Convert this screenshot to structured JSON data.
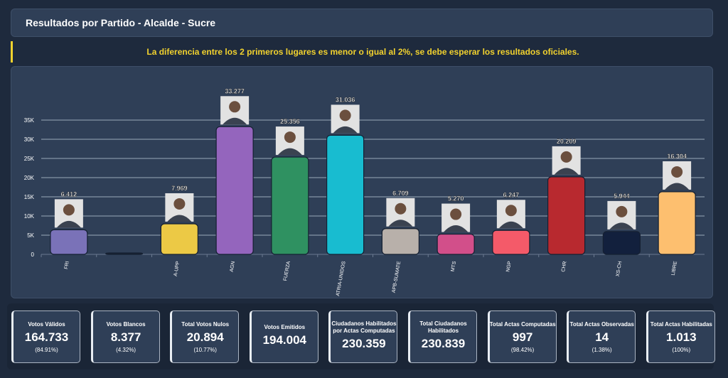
{
  "header": {
    "title": "Resultados por Partido - Alcalde - Sucre"
  },
  "alert": {
    "text": "La diferencia entre los 2 primeros lugares es menor o igual al 2%, se debe esperar los resultados oficiales."
  },
  "colors": {
    "background": "#1e2a3d",
    "card": "#2f3f57",
    "alert": "#f2d22e"
  },
  "chart_data": {
    "type": "bar",
    "categories": [
      "FRI",
      "",
      "A-UPP",
      "AGN",
      "FUERZA",
      "PATRIA-UNIDOS",
      "APB-SUMATE",
      "MTS",
      "NGP",
      "CHR",
      "XS-CH",
      "LIBRE"
    ],
    "values": [
      6412,
      0,
      7969,
      33277,
      25356,
      31036,
      6709,
      5270,
      6247,
      20209,
      5944,
      16304
    ],
    "value_labels": [
      "6.412",
      "",
      "7.969",
      "33.277",
      "25.356",
      "31.036",
      "6.709",
      "5.270",
      "6.247",
      "20.209",
      "5.944",
      "16.304"
    ],
    "colors": [
      "#7a72b8",
      "#1a2230",
      "#ecc945",
      "#9465bd",
      "#2f9161",
      "#18bcd0",
      "#b8b0aa",
      "#d24f8a",
      "#f45a69",
      "#b8292f",
      "#12203d",
      "#fdbf6f"
    ],
    "yticks": [
      "0",
      "5K",
      "10K",
      "15K",
      "20K",
      "25K",
      "30K",
      "35K"
    ],
    "ylim": [
      0,
      35000
    ],
    "grid": true,
    "candidate_photos": true
  },
  "stats": [
    {
      "label": "Votos Válidos",
      "value": "164.733",
      "pct": "(84.91%)"
    },
    {
      "label": "Votos Blancos",
      "value": "8.377",
      "pct": "(4.32%)"
    },
    {
      "label": "Total Votos Nulos",
      "value": "20.894",
      "pct": "(10.77%)"
    },
    {
      "label": "Votos Emitidos",
      "value": "194.004",
      "pct": ""
    },
    {
      "label": "Ciudadanos Habilitados por Actas Computadas",
      "value": "230.359",
      "pct": ""
    },
    {
      "label": "Total Ciudadanos Habilitados",
      "value": "230.839",
      "pct": ""
    },
    {
      "label": "Total Actas Computadas",
      "value": "997",
      "pct": "(98.42%)"
    },
    {
      "label": "Total Actas Observadas",
      "value": "14",
      "pct": "(1.38%)"
    },
    {
      "label": "Total Actas Habilitadas",
      "value": "1.013",
      "pct": "(100%)"
    }
  ]
}
